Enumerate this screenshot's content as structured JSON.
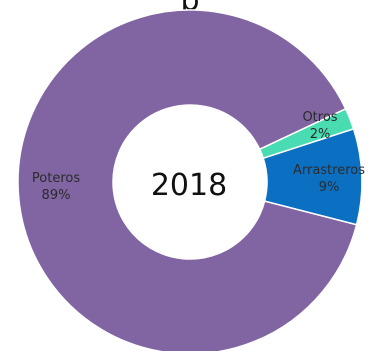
{
  "chart_data": {
    "type": "pie",
    "title": "",
    "center_label": "2018",
    "top_clipped_text": "p",
    "slices": [
      {
        "name": "Poteros",
        "value": 89,
        "value_label": "89%",
        "color": "#8065a2"
      },
      {
        "name": "Arrastreros",
        "value": 9,
        "value_label": "9%",
        "color": "#0b70c1"
      },
      {
        "name": "Otros",
        "value": 2,
        "value_label": "2%",
        "color": "#49dcb2"
      }
    ],
    "start_angle_deg": 0,
    "donut": true
  }
}
